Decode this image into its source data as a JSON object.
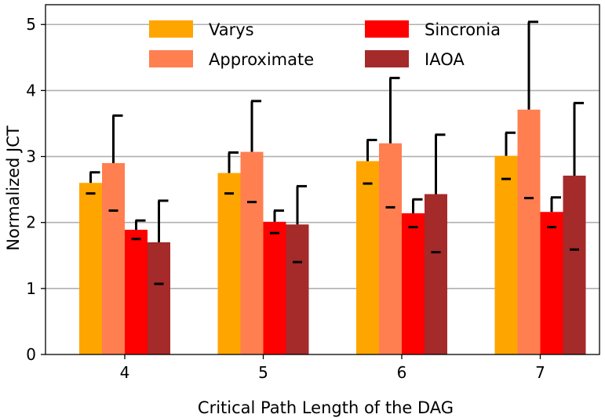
{
  "chart_data": {
    "type": "bar",
    "title": "",
    "xlabel": "Critical Path Length of the DAG",
    "ylabel": "Normalized JCT",
    "categories": [
      "4",
      "5",
      "6",
      "7"
    ],
    "ylim": [
      0,
      5.3
    ],
    "yticks": [
      0,
      1,
      2,
      3,
      4,
      5
    ],
    "grid": "y",
    "legend_position": "top",
    "series": [
      {
        "name": "Varys",
        "color": "#FFA500",
        "values": [
          2.6,
          2.75,
          2.93,
          3.01
        ],
        "error_upper": [
          2.76,
          3.06,
          3.25,
          3.36
        ],
        "markers": [
          2.44,
          2.44,
          2.59,
          2.66
        ]
      },
      {
        "name": "Approximate",
        "color": "#FF7F50",
        "values": [
          2.9,
          3.07,
          3.2,
          3.71
        ],
        "error_upper": [
          3.62,
          3.84,
          4.19,
          5.04
        ],
        "markers": [
          2.18,
          2.31,
          2.23,
          2.37
        ]
      },
      {
        "name": "Sincronia",
        "color": "#FF0000",
        "values": [
          1.89,
          2.01,
          2.14,
          2.16
        ],
        "error_upper": [
          2.03,
          2.18,
          2.35,
          2.38
        ],
        "markers": [
          1.75,
          1.84,
          1.93,
          1.93
        ]
      },
      {
        "name": "IAOA",
        "color": "#A52A2A",
        "values": [
          1.7,
          1.97,
          2.43,
          2.71
        ],
        "error_upper": [
          2.33,
          2.55,
          3.33,
          3.81
        ],
        "markers": [
          1.07,
          1.4,
          1.55,
          1.59
        ]
      }
    ]
  }
}
